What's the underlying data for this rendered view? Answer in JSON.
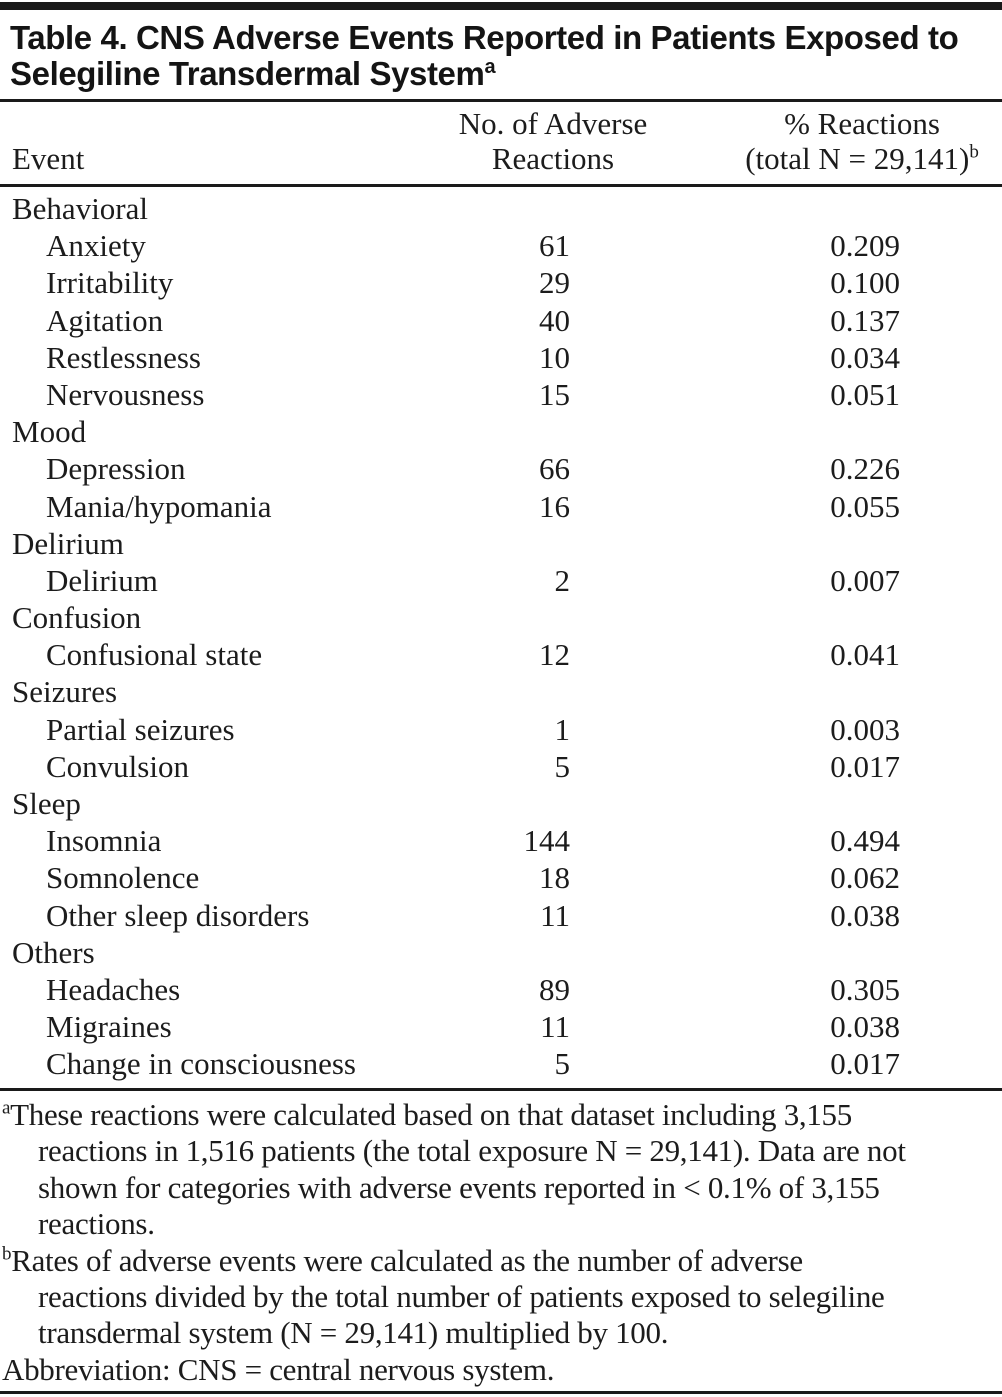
{
  "colors": {
    "background": "#ffffff",
    "ink": "#1c1c1c",
    "rule_black": "#1a1a1a"
  },
  "table": {
    "title": {
      "line1": "Table 4. CNS Adverse Events Reported in Patients Exposed to",
      "line2": "Selegiline Transdermal System",
      "superscript": "a"
    },
    "columns": {
      "event": "Event",
      "num_line1": "No. of Adverse",
      "num_line2": "Reactions",
      "pct_line1": "% Reactions",
      "pct_line2": "(total N = 29,141)",
      "pct_superscript": "b"
    },
    "rows": [
      {
        "type": "category",
        "event": "Behavioral",
        "num": "",
        "pct": ""
      },
      {
        "type": "item",
        "event": "Anxiety",
        "num": "61",
        "pct": "0.209"
      },
      {
        "type": "item",
        "event": "Irritability",
        "num": "29",
        "pct": "0.100"
      },
      {
        "type": "item",
        "event": "Agitation",
        "num": "40",
        "pct": "0.137"
      },
      {
        "type": "item",
        "event": "Restlessness",
        "num": "10",
        "pct": "0.034"
      },
      {
        "type": "item",
        "event": "Nervousness",
        "num": "15",
        "pct": "0.051"
      },
      {
        "type": "category",
        "event": "Mood",
        "num": "",
        "pct": ""
      },
      {
        "type": "item",
        "event": "Depression",
        "num": "66",
        "pct": "0.226"
      },
      {
        "type": "item",
        "event": "Mania/hypomania",
        "num": "16",
        "pct": "0.055"
      },
      {
        "type": "category",
        "event": "Delirium",
        "num": "",
        "pct": ""
      },
      {
        "type": "item",
        "event": "Delirium",
        "num": "2",
        "pct": "0.007"
      },
      {
        "type": "category",
        "event": "Confusion",
        "num": "",
        "pct": ""
      },
      {
        "type": "item",
        "event": "Confusional state",
        "num": "12",
        "pct": "0.041"
      },
      {
        "type": "category",
        "event": "Seizures",
        "num": "",
        "pct": ""
      },
      {
        "type": "item",
        "event": "Partial seizures",
        "num": "1",
        "pct": "0.003"
      },
      {
        "type": "item",
        "event": "Convulsion",
        "num": "5",
        "pct": "0.017"
      },
      {
        "type": "category",
        "event": "Sleep",
        "num": "",
        "pct": ""
      },
      {
        "type": "item",
        "event": "Insomnia",
        "num": "144",
        "pct": "0.494"
      },
      {
        "type": "item",
        "event": "Somnolence",
        "num": "18",
        "pct": "0.062"
      },
      {
        "type": "item",
        "event": "Other sleep disorders",
        "num": "11",
        "pct": "0.038"
      },
      {
        "type": "category",
        "event": "Others",
        "num": "",
        "pct": ""
      },
      {
        "type": "item",
        "event": "Headaches",
        "num": "89",
        "pct": "0.305"
      },
      {
        "type": "item",
        "event": "Migraines",
        "num": "11",
        "pct": "0.038"
      },
      {
        "type": "item",
        "event": "Change in consciousness",
        "num": "5",
        "pct": "0.017"
      }
    ]
  },
  "footnotes": [
    {
      "marker": "a",
      "lines": [
        "These reactions were calculated based on that dataset including 3,155",
        "reactions in 1,516 patients (the total exposure N = 29,141). Data are not",
        "shown for categories with adverse events reported in < 0.1% of 3,155",
        "reactions."
      ]
    },
    {
      "marker": "b",
      "lines": [
        "Rates of adverse events were calculated as the number of adverse",
        "reactions divided by the total number of patients exposed to selegiline",
        "transdermal system (N = 29,141) multiplied by 100."
      ]
    },
    {
      "marker": "",
      "lines": [
        "Abbreviation: CNS = central nervous system."
      ]
    }
  ]
}
